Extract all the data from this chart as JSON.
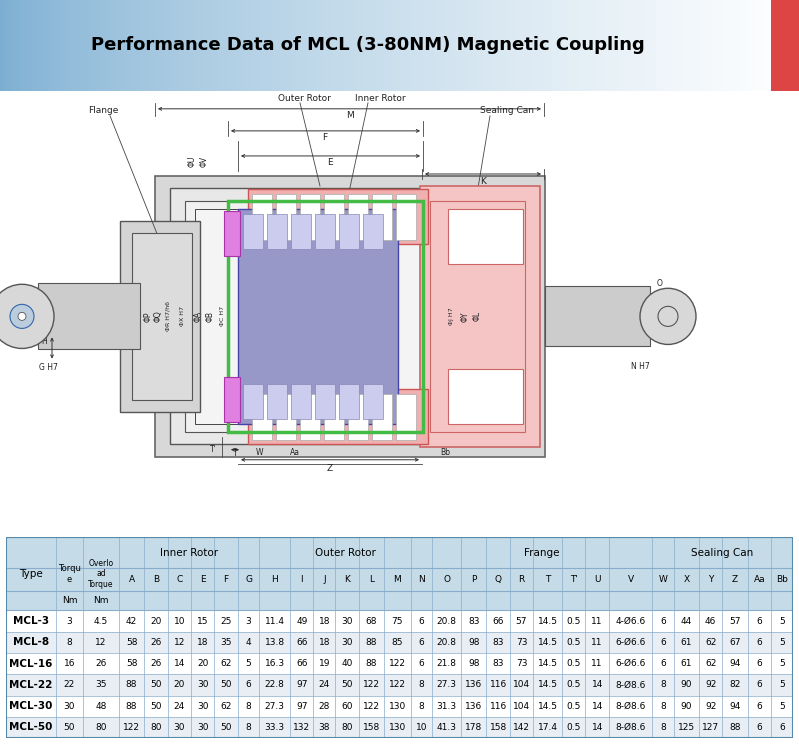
{
  "title": "Performance Data of MCL (3-80NM) Magnetic Coupling",
  "title_fontsize": 13,
  "data_rows": [
    [
      "MCL-3",
      "3",
      "4.5",
      "42",
      "20",
      "10",
      "15",
      "25",
      "3",
      "11.4",
      "49",
      "18",
      "30",
      "68",
      "75",
      "6",
      "20.8",
      "83",
      "66",
      "57",
      "14.5",
      "0.5",
      "11",
      "4-Ø6.6",
      "6",
      "44",
      "46",
      "57",
      "6",
      "5"
    ],
    [
      "MCL-8",
      "8",
      "12",
      "58",
      "26",
      "12",
      "18",
      "35",
      "4",
      "13.8",
      "66",
      "18",
      "30",
      "88",
      "85",
      "6",
      "20.8",
      "98",
      "83",
      "73",
      "14.5",
      "0.5",
      "11",
      "6-Ø6.6",
      "6",
      "61",
      "62",
      "67",
      "6",
      "5"
    ],
    [
      "MCL-16",
      "16",
      "26",
      "58",
      "26",
      "14",
      "20",
      "62",
      "5",
      "16.3",
      "66",
      "19",
      "40",
      "88",
      "122",
      "6",
      "21.8",
      "98",
      "83",
      "73",
      "14.5",
      "0.5",
      "11",
      "6-Ø6.6",
      "6",
      "61",
      "62",
      "94",
      "6",
      "5"
    ],
    [
      "MCL-22",
      "22",
      "35",
      "88",
      "50",
      "20",
      "30",
      "50",
      "6",
      "22.8",
      "97",
      "24",
      "50",
      "122",
      "122",
      "8",
      "27.3",
      "136",
      "116",
      "104",
      "14.5",
      "0.5",
      "14",
      "8-Ø8.6",
      "8",
      "90",
      "92",
      "82",
      "6",
      "5"
    ],
    [
      "MCL-30",
      "30",
      "48",
      "88",
      "50",
      "24",
      "30",
      "62",
      "8",
      "27.3",
      "97",
      "28",
      "60",
      "122",
      "130",
      "8",
      "31.3",
      "136",
      "116",
      "104",
      "14.5",
      "0.5",
      "14",
      "8-Ø8.6",
      "8",
      "90",
      "92",
      "94",
      "6",
      "5"
    ],
    [
      "MCL-50",
      "50",
      "80",
      "122",
      "80",
      "30",
      "30",
      "50",
      "8",
      "33.3",
      "132",
      "38",
      "80",
      "158",
      "130",
      "10",
      "41.3",
      "178",
      "158",
      "142",
      "17.4",
      "0.5",
      "14",
      "8-Ø8.6",
      "8",
      "125",
      "127",
      "88",
      "6",
      "6"
    ]
  ],
  "col_names": [
    "",
    "",
    "",
    "A",
    "B",
    "C",
    "E",
    "F",
    "G",
    "H",
    "I",
    "J",
    "K",
    "L",
    "M",
    "N",
    "O",
    "P",
    "Q",
    "R",
    "T",
    "T'",
    "U",
    "V",
    "W",
    "X",
    "Y",
    "Z",
    "Aa",
    "Bb"
  ],
  "col_widths_rel": [
    5.5,
    3.0,
    4.0,
    2.8,
    2.6,
    2.6,
    2.6,
    2.6,
    2.4,
    3.4,
    2.6,
    2.4,
    2.6,
    2.8,
    3.0,
    2.4,
    3.2,
    2.8,
    2.6,
    2.6,
    3.2,
    2.6,
    2.6,
    4.8,
    2.4,
    2.8,
    2.6,
    2.8,
    2.6,
    2.4
  ],
  "groups": [
    {
      "label": "Inner Rotor",
      "cols": [
        3,
        4,
        5,
        6,
        7,
        8
      ]
    },
    {
      "label": "Outer Rotor",
      "cols": [
        9,
        10,
        11,
        12,
        13,
        14,
        15
      ]
    },
    {
      "label": "Frange",
      "cols": [
        16,
        17,
        18,
        19,
        20,
        21,
        22,
        23
      ]
    },
    {
      "label": "Sealing Can",
      "cols": [
        24,
        25,
        26,
        27,
        28,
        29
      ]
    }
  ],
  "table_bg": "#c5dce8",
  "row_bg_even": "#ffffff",
  "row_bg_odd": "#e8eef4",
  "pink_c": "#f0b0b0",
  "blue_c": "#9898c8",
  "light_pink": "#f5c5c5",
  "magenta_c": "#e080e0",
  "shaft_c": "#cccccc",
  "dim_c": "#404040",
  "green_c": "#44bb44"
}
